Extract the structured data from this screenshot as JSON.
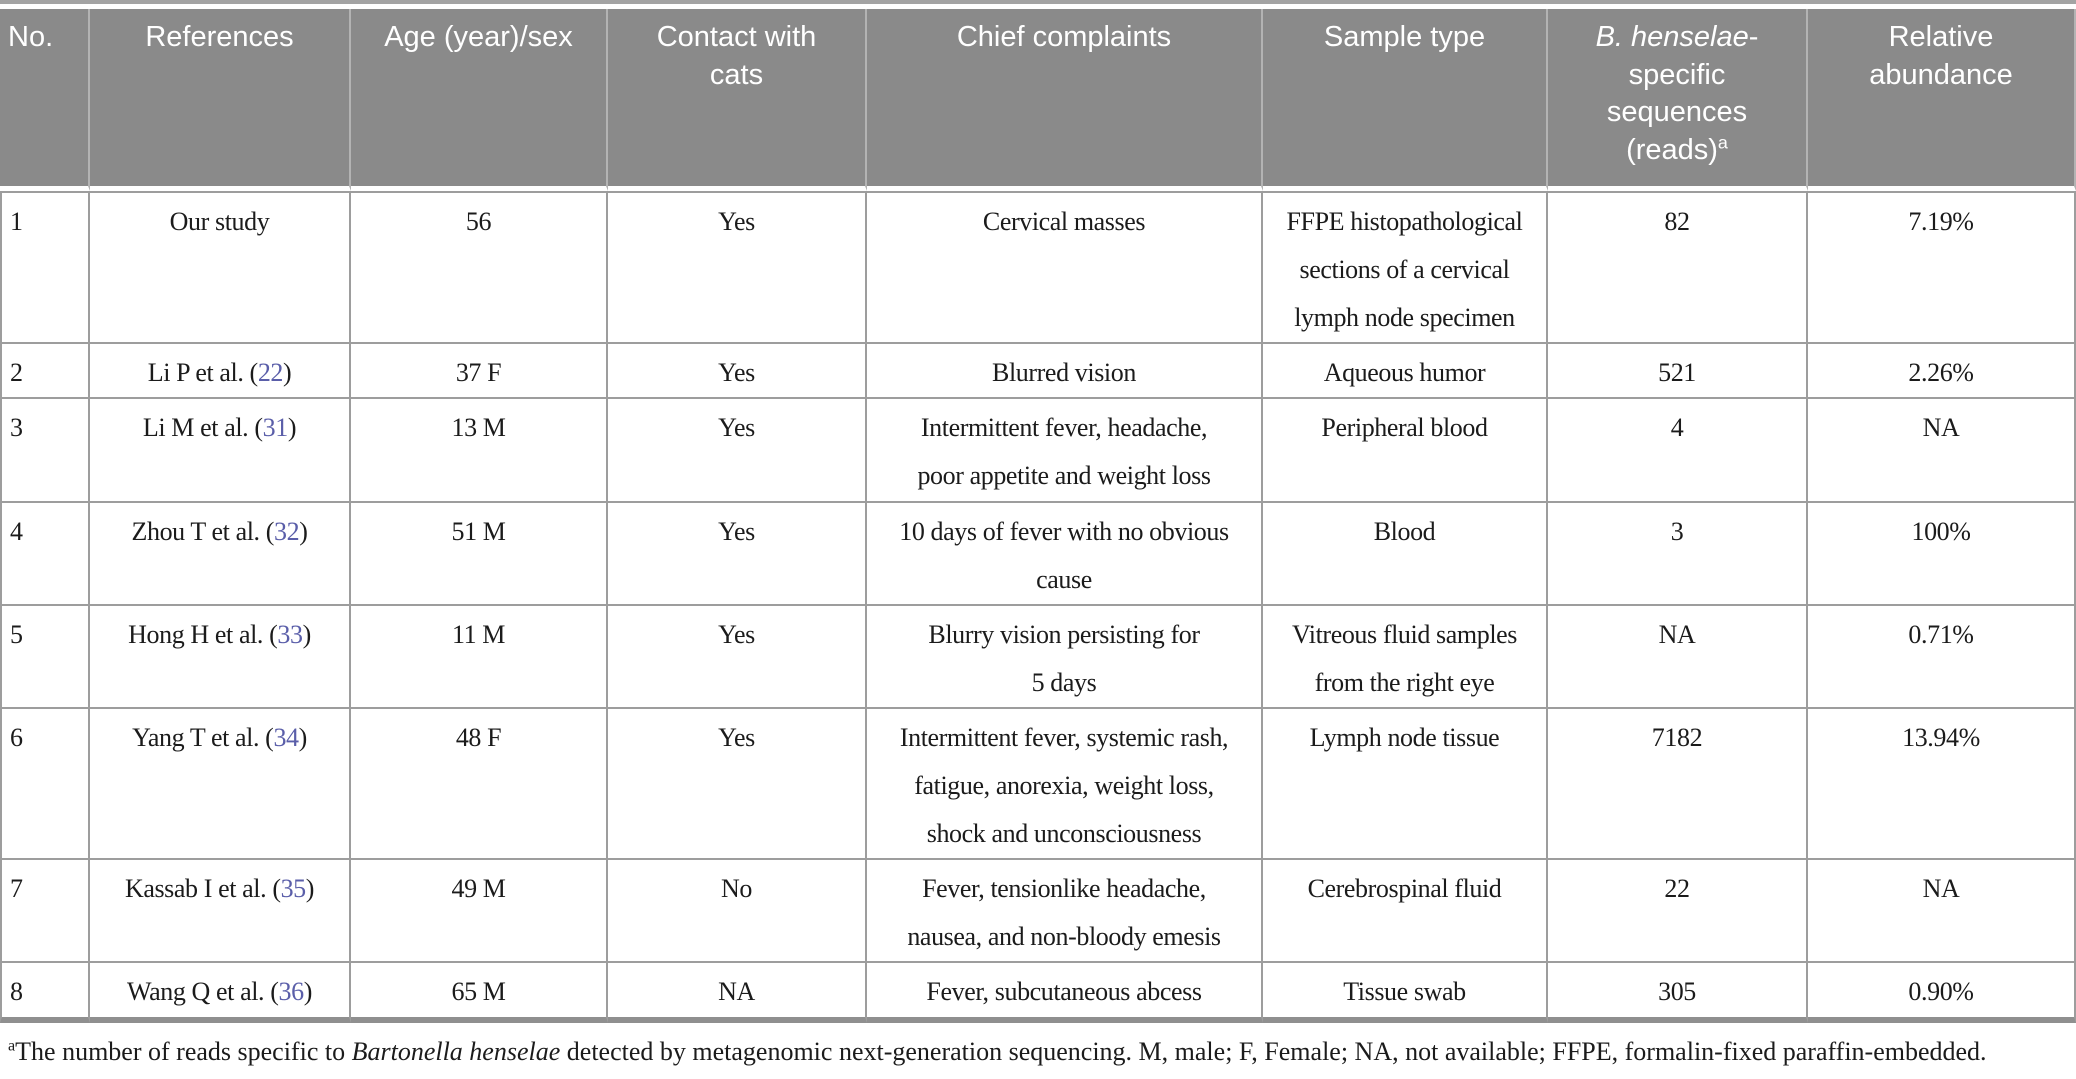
{
  "colors": {
    "header_bg": "#8a8a8a",
    "header_text": "#ffffff",
    "reference_link": "#5a5ea9",
    "cell_border": "#9d9d9d",
    "body_text": "#1b1b1b"
  },
  "table": {
    "columns": [
      {
        "label": "No."
      },
      {
        "label": "References"
      },
      {
        "label": "Age (year)/sex"
      },
      {
        "label": "Contact with\ncats"
      },
      {
        "label": "Chief complaints"
      },
      {
        "label": "Sample type"
      },
      {
        "label_italic": "B. henselae",
        "label_rest": "-\nspecific\nsequences\n(reads)",
        "label_sup": "a"
      },
      {
        "label": "Relative\nabundance"
      }
    ],
    "rows": [
      {
        "no": "1",
        "reference": {
          "label": "Our study",
          "num": null
        },
        "age_sex": "56",
        "contact": "Yes",
        "complaints": "Cervical masses",
        "sample": "FFPE histopathological\nsections of a cervical\nlymph node specimen",
        "reads": "82",
        "abundance": "7.19%"
      },
      {
        "no": "2",
        "reference": {
          "label": "Li P et al.",
          "num": "22"
        },
        "age_sex": "37 F",
        "contact": "Yes",
        "complaints": "Blurred vision",
        "sample": "Aqueous humor",
        "reads": "521",
        "abundance": "2.26%"
      },
      {
        "no": "3",
        "reference": {
          "label": "Li M et al.",
          "num": "31"
        },
        "age_sex": "13 M",
        "contact": "Yes",
        "complaints": "Intermittent fever, headache,\npoor appetite and weight loss",
        "sample": "Peripheral blood",
        "reads": "4",
        "abundance": "NA"
      },
      {
        "no": "4",
        "reference": {
          "label": "Zhou T et al.",
          "num": "32"
        },
        "age_sex": "51 M",
        "contact": "Yes",
        "complaints": "10 days of fever with no obvious\ncause",
        "sample": "Blood",
        "reads": "3",
        "abundance": "100%"
      },
      {
        "no": "5",
        "reference": {
          "label": "Hong H et al.",
          "num": "33"
        },
        "age_sex": "11 M",
        "contact": "Yes",
        "complaints": "Blurry vision persisting for\n5 days",
        "sample": "Vitreous fluid samples\nfrom the right eye",
        "reads": "NA",
        "abundance": "0.71%"
      },
      {
        "no": "6",
        "reference": {
          "label": "Yang T et al.",
          "num": "34"
        },
        "age_sex": "48 F",
        "contact": "Yes",
        "complaints": "Intermittent fever, systemic rash,\nfatigue, anorexia, weight loss,\nshock and unconsciousness",
        "sample": "Lymph node tissue",
        "reads": "7182",
        "abundance": "13.94%"
      },
      {
        "no": "7",
        "reference": {
          "label": "Kassab I et al.",
          "num": "35"
        },
        "age_sex": "49 M",
        "contact": "No",
        "complaints": "Fever, tensionlike headache,\nnausea, and non-bloody emesis",
        "sample": "Cerebrospinal fluid",
        "reads": "22",
        "abundance": "NA"
      },
      {
        "no": "8",
        "reference": {
          "label": "Wang Q et al.",
          "num": "36"
        },
        "age_sex": "65 M",
        "contact": "NA",
        "complaints": "Fever, subcutaneous abcess",
        "sample": "Tissue swab",
        "reads": "305",
        "abundance": "0.90%"
      }
    ]
  },
  "footnote": {
    "marker": "a",
    "text_before_italic": "The number of reads specific to ",
    "italic": "Bartonella henselae",
    "text_after_italic": " detected by metagenomic next-generation sequencing. M, male; F, Female; NA, not available; FFPE, formalin-fixed paraffin-embedded."
  }
}
